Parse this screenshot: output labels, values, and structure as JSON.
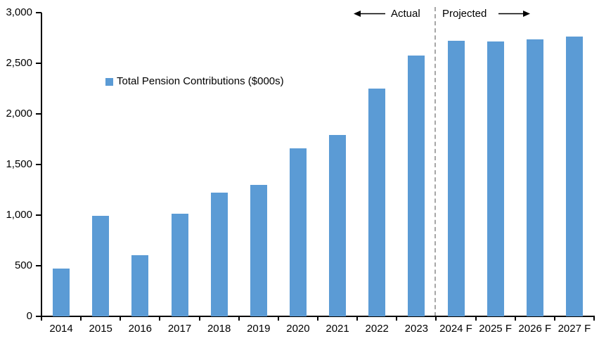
{
  "chart_data": {
    "type": "bar",
    "categories": [
      "2014",
      "2015",
      "2016",
      "2017",
      "2018",
      "2019",
      "2020",
      "2021",
      "2022",
      "2023",
      "2024 F",
      "2025 F",
      "2026 F",
      "2027 F"
    ],
    "values": [
      470,
      990,
      605,
      1015,
      1220,
      1300,
      1660,
      1790,
      2250,
      2575,
      2720,
      2715,
      2735,
      2765
    ],
    "ylim": [
      0,
      3000
    ],
    "ytick_interval": 500,
    "ytick_labels": [
      "0",
      "500",
      "1,000",
      "1,500",
      "2,000",
      "2,500",
      "3,000"
    ],
    "grid": false,
    "bar_color": "#5B9BD5",
    "axis_color": "#000000",
    "legend": {
      "label": "Total Pension Contributions ($000s)",
      "marker_color": "#5B9BD5",
      "position": "inside-upper-left"
    },
    "divider": {
      "after_category": "2023",
      "style": "dashed",
      "color": "#A6A6A6"
    },
    "annotations": {
      "left": "Actual",
      "right": "Projected"
    }
  }
}
